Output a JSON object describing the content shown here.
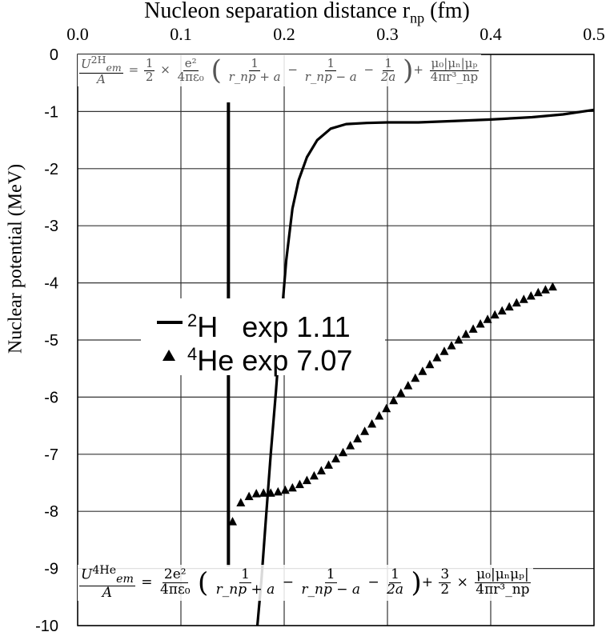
{
  "chart_data": {
    "type": "line",
    "xlabel_text": "Nucleon separation distance r",
    "xlabel_sub": "np",
    "xlabel_unit": "(fm)",
    "ylabel": "Nuclear potential (MeV)",
    "xlim": [
      0,
      0.5
    ],
    "ylim": [
      -10,
      0
    ],
    "x_ticks": [
      "0.0",
      "0.1",
      "0.2",
      "0.3",
      "0.4",
      "0.5"
    ],
    "y_ticks": [
      "0",
      "-1",
      "-2",
      "-3",
      "-4",
      "-5",
      "-6",
      "-7",
      "-8",
      "-9",
      "-10"
    ],
    "grid": true,
    "vertical_reference_line_x": 0.146,
    "series": [
      {
        "name": "2H exp 1.11",
        "marker": "line",
        "points": [
          [
            0.174,
            -10.0
          ],
          [
            0.178,
            -9.2
          ],
          [
            0.182,
            -8.2
          ],
          [
            0.187,
            -7.0
          ],
          [
            0.192,
            -5.9
          ],
          [
            0.197,
            -4.7
          ],
          [
            0.202,
            -3.6
          ],
          [
            0.208,
            -2.7
          ],
          [
            0.214,
            -2.2
          ],
          [
            0.222,
            -1.8
          ],
          [
            0.232,
            -1.5
          ],
          [
            0.245,
            -1.3
          ],
          [
            0.26,
            -1.22
          ],
          [
            0.28,
            -1.2
          ],
          [
            0.3,
            -1.19
          ],
          [
            0.33,
            -1.19
          ],
          [
            0.36,
            -1.17
          ],
          [
            0.4,
            -1.14
          ],
          [
            0.44,
            -1.1
          ],
          [
            0.47,
            -1.05
          ],
          [
            0.5,
            -0.97
          ]
        ]
      },
      {
        "name": "4He exp 7.07",
        "marker": "triangle",
        "points": [
          [
            0.15,
            -8.18
          ],
          [
            0.158,
            -7.85
          ],
          [
            0.166,
            -7.74
          ],
          [
            0.173,
            -7.69
          ],
          [
            0.18,
            -7.68
          ],
          [
            0.187,
            -7.68
          ],
          [
            0.194,
            -7.66
          ],
          [
            0.201,
            -7.63
          ],
          [
            0.208,
            -7.59
          ],
          [
            0.215,
            -7.53
          ],
          [
            0.222,
            -7.46
          ],
          [
            0.229,
            -7.38
          ],
          [
            0.236,
            -7.29
          ],
          [
            0.243,
            -7.19
          ],
          [
            0.25,
            -7.08
          ],
          [
            0.257,
            -6.97
          ],
          [
            0.264,
            -6.85
          ],
          [
            0.271,
            -6.73
          ],
          [
            0.278,
            -6.6
          ],
          [
            0.285,
            -6.47
          ],
          [
            0.292,
            -6.33
          ],
          [
            0.299,
            -6.2
          ],
          [
            0.306,
            -6.06
          ],
          [
            0.313,
            -5.93
          ],
          [
            0.32,
            -5.8
          ],
          [
            0.327,
            -5.67
          ],
          [
            0.334,
            -5.55
          ],
          [
            0.341,
            -5.43
          ],
          [
            0.348,
            -5.31
          ],
          [
            0.355,
            -5.2
          ],
          [
            0.362,
            -5.1
          ],
          [
            0.369,
            -5.0
          ],
          [
            0.376,
            -4.9
          ],
          [
            0.383,
            -4.81
          ],
          [
            0.39,
            -4.72
          ],
          [
            0.397,
            -4.64
          ],
          [
            0.404,
            -4.56
          ],
          [
            0.411,
            -4.49
          ],
          [
            0.418,
            -4.42
          ],
          [
            0.425,
            -4.35
          ],
          [
            0.432,
            -4.29
          ],
          [
            0.439,
            -4.23
          ],
          [
            0.446,
            -4.17
          ],
          [
            0.453,
            -4.12
          ],
          [
            0.46,
            -4.07
          ]
        ]
      }
    ]
  },
  "legend": {
    "h2_sup": "2",
    "h2_label": "H   exp 1.11",
    "he4_sup": "4",
    "he4_label": "He exp 7.07"
  },
  "equations": {
    "top": {
      "lhs_sup": "2",
      "lhs_nuc": "H",
      "lhs_em": "em",
      "lhs_den": "A",
      "eq": "=",
      "coef_num": "1",
      "coef_den": "2",
      "times": "×",
      "e2": "e²",
      "k_den": "4πε₀",
      "t1_num": "1",
      "t1_den": "r_np + a",
      "minus": "−",
      "t2_num": "1",
      "t2_den": "r_np − a",
      "t3_num": "1",
      "t3_den": "2a",
      "plus": "+",
      "mag_num": "μ₀|μₙ|μₚ",
      "mag_den": "4πr³_np"
    },
    "bottom": {
      "lhs_sup": "4",
      "lhs_nuc": "He",
      "lhs_em": "em",
      "lhs_den": "A",
      "eq": "=",
      "k_num": "2e²",
      "k_den": "4πε₀",
      "t1_num": "1",
      "t1_den": "r_np + a",
      "minus": "−",
      "t2_num": "1",
      "t2_den": "r_np − a",
      "t3_num": "1",
      "t3_den": "2a",
      "plus": "+",
      "c_num": "3",
      "c_den": "2",
      "times": "×",
      "mag_num": "μ₀|μₙμₚ|",
      "mag_den": "4πr³_np"
    }
  }
}
